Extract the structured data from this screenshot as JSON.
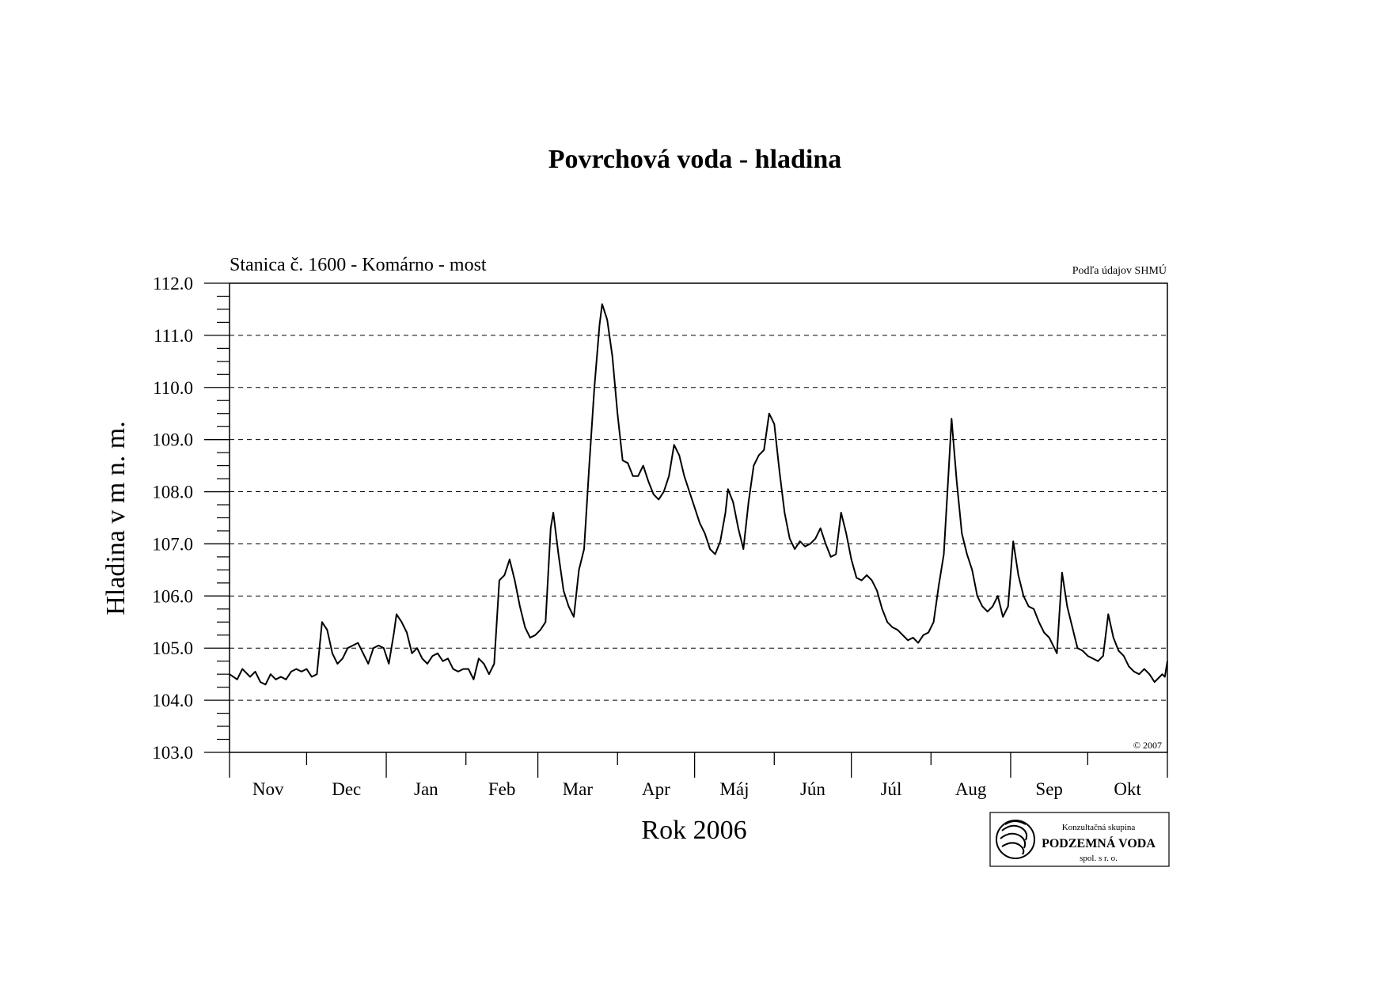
{
  "chart_data": {
    "type": "line",
    "title": "Povrchová voda - hladina",
    "subtitle": "Stanica č. 1600 - Komárno - most",
    "source_note": "Podľa údajov SHMÚ",
    "copyright": "© 2007",
    "xlabel": "Rok 2006",
    "ylabel": "Hladina v m n. m.",
    "ylim": [
      103.0,
      112.0
    ],
    "ytick_labels": [
      "103.0",
      "104.0",
      "105.0",
      "106.0",
      "107.0",
      "108.0",
      "109.0",
      "110.0",
      "111.0",
      "112.0"
    ],
    "month_labels": [
      "Nov",
      "Dec",
      "Jan",
      "Feb",
      "Mar",
      "Apr",
      "Máj",
      "Jún",
      "Júl",
      "Aug",
      "Sep",
      "Okt"
    ],
    "month_days": [
      30,
      31,
      31,
      28,
      31,
      30,
      31,
      30,
      31,
      31,
      30,
      31
    ],
    "grid": "horizontal dashed",
    "line_color": "#000000",
    "series": [
      {
        "x_unit": "day",
        "points": [
          [
            0,
            104.5
          ],
          [
            3,
            104.4
          ],
          [
            5,
            104.6
          ],
          [
            8,
            104.45
          ],
          [
            10,
            104.55
          ],
          [
            12,
            104.35
          ],
          [
            14,
            104.3
          ],
          [
            16,
            104.5
          ],
          [
            18,
            104.4
          ],
          [
            20,
            104.45
          ],
          [
            22,
            104.4
          ],
          [
            24,
            104.55
          ],
          [
            26,
            104.6
          ],
          [
            28,
            104.55
          ],
          [
            30,
            104.6
          ],
          [
            32,
            104.45
          ],
          [
            34,
            104.5
          ],
          [
            36,
            105.5
          ],
          [
            38,
            105.35
          ],
          [
            40,
            104.9
          ],
          [
            42,
            104.7
          ],
          [
            44,
            104.8
          ],
          [
            46,
            105.0
          ],
          [
            48,
            105.05
          ],
          [
            50,
            105.1
          ],
          [
            52,
            104.9
          ],
          [
            54,
            104.7
          ],
          [
            56,
            105.0
          ],
          [
            58,
            105.05
          ],
          [
            60,
            105.0
          ],
          [
            62,
            104.7
          ],
          [
            64,
            105.3
          ],
          [
            65,
            105.65
          ],
          [
            67,
            105.5
          ],
          [
            69,
            105.3
          ],
          [
            71,
            104.9
          ],
          [
            73,
            105.0
          ],
          [
            75,
            104.8
          ],
          [
            77,
            104.7
          ],
          [
            79,
            104.85
          ],
          [
            81,
            104.9
          ],
          [
            83,
            104.75
          ],
          [
            85,
            104.8
          ],
          [
            87,
            104.6
          ],
          [
            89,
            104.55
          ],
          [
            91,
            104.6
          ],
          [
            93,
            104.6
          ],
          [
            95,
            104.4
          ],
          [
            97,
            104.8
          ],
          [
            99,
            104.7
          ],
          [
            101,
            104.5
          ],
          [
            103,
            104.7
          ],
          [
            105,
            106.3
          ],
          [
            107,
            106.4
          ],
          [
            109,
            106.7
          ],
          [
            111,
            106.3
          ],
          [
            113,
            105.8
          ],
          [
            115,
            105.4
          ],
          [
            117,
            105.2
          ],
          [
            119,
            105.25
          ],
          [
            121,
            105.35
          ],
          [
            123,
            105.5
          ],
          [
            125,
            107.3
          ],
          [
            126,
            107.6
          ],
          [
            128,
            106.8
          ],
          [
            130,
            106.1
          ],
          [
            132,
            105.8
          ],
          [
            134,
            105.6
          ],
          [
            136,
            106.5
          ],
          [
            138,
            106.9
          ],
          [
            140,
            108.5
          ],
          [
            142,
            110.0
          ],
          [
            144,
            111.2
          ],
          [
            145,
            111.6
          ],
          [
            147,
            111.3
          ],
          [
            149,
            110.6
          ],
          [
            151,
            109.5
          ],
          [
            153,
            108.6
          ],
          [
            155,
            108.55
          ],
          [
            157,
            108.3
          ],
          [
            159,
            108.3
          ],
          [
            161,
            108.5
          ],
          [
            163,
            108.2
          ],
          [
            165,
            107.95
          ],
          [
            167,
            107.85
          ],
          [
            169,
            108.0
          ],
          [
            171,
            108.3
          ],
          [
            173,
            108.9
          ],
          [
            175,
            108.7
          ],
          [
            177,
            108.3
          ],
          [
            179,
            108.0
          ],
          [
            181,
            107.7
          ],
          [
            183,
            107.4
          ],
          [
            185,
            107.2
          ],
          [
            187,
            106.9
          ],
          [
            189,
            106.8
          ],
          [
            191,
            107.05
          ],
          [
            193,
            107.6
          ],
          [
            194,
            108.05
          ],
          [
            196,
            107.8
          ],
          [
            198,
            107.3
          ],
          [
            200,
            106.9
          ],
          [
            202,
            107.8
          ],
          [
            204,
            108.5
          ],
          [
            206,
            108.7
          ],
          [
            208,
            108.8
          ],
          [
            210,
            109.5
          ],
          [
            212,
            109.3
          ],
          [
            214,
            108.4
          ],
          [
            216,
            107.6
          ],
          [
            218,
            107.1
          ],
          [
            220,
            106.9
          ],
          [
            222,
            107.05
          ],
          [
            224,
            106.95
          ],
          [
            226,
            107.0
          ],
          [
            228,
            107.1
          ],
          [
            230,
            107.3
          ],
          [
            232,
            107.0
          ],
          [
            234,
            106.75
          ],
          [
            236,
            106.8
          ],
          [
            238,
            107.6
          ],
          [
            240,
            107.2
          ],
          [
            242,
            106.7
          ],
          [
            244,
            106.35
          ],
          [
            246,
            106.3
          ],
          [
            248,
            106.4
          ],
          [
            250,
            106.3
          ],
          [
            252,
            106.1
          ],
          [
            254,
            105.75
          ],
          [
            256,
            105.5
          ],
          [
            258,
            105.4
          ],
          [
            260,
            105.35
          ],
          [
            262,
            105.25
          ],
          [
            264,
            105.15
          ],
          [
            266,
            105.2
          ],
          [
            268,
            105.1
          ],
          [
            270,
            105.25
          ],
          [
            272,
            105.3
          ],
          [
            274,
            105.5
          ],
          [
            276,
            106.2
          ],
          [
            278,
            106.8
          ],
          [
            280,
            108.5
          ],
          [
            281,
            109.4
          ],
          [
            283,
            108.2
          ],
          [
            285,
            107.2
          ],
          [
            287,
            106.8
          ],
          [
            289,
            106.5
          ],
          [
            291,
            106.0
          ],
          [
            293,
            105.8
          ],
          [
            295,
            105.7
          ],
          [
            297,
            105.8
          ],
          [
            299,
            106.0
          ],
          [
            301,
            105.6
          ],
          [
            303,
            105.8
          ],
          [
            305,
            107.05
          ],
          [
            307,
            106.4
          ],
          [
            309,
            106.0
          ],
          [
            311,
            105.8
          ],
          [
            313,
            105.75
          ],
          [
            315,
            105.5
          ],
          [
            317,
            105.3
          ],
          [
            319,
            105.2
          ],
          [
            321,
            105.0
          ],
          [
            322,
            104.9
          ],
          [
            324,
            106.45
          ],
          [
            326,
            105.8
          ],
          [
            328,
            105.4
          ],
          [
            330,
            105.0
          ],
          [
            332,
            104.95
          ],
          [
            334,
            104.85
          ],
          [
            336,
            104.8
          ],
          [
            338,
            104.75
          ],
          [
            340,
            104.85
          ],
          [
            342,
            105.65
          ],
          [
            344,
            105.2
          ],
          [
            346,
            104.95
          ],
          [
            348,
            104.85
          ],
          [
            350,
            104.65
          ],
          [
            352,
            104.55
          ],
          [
            354,
            104.5
          ],
          [
            356,
            104.6
          ],
          [
            358,
            104.5
          ],
          [
            360,
            104.35
          ],
          [
            362,
            104.45
          ],
          [
            363,
            104.5
          ],
          [
            364,
            104.45
          ],
          [
            365,
            104.75
          ]
        ]
      }
    ],
    "logo": {
      "line1": "Konzultačná skupina",
      "line2": "PODZEMNÁ VODA",
      "line3": "spol. s r. o."
    }
  }
}
